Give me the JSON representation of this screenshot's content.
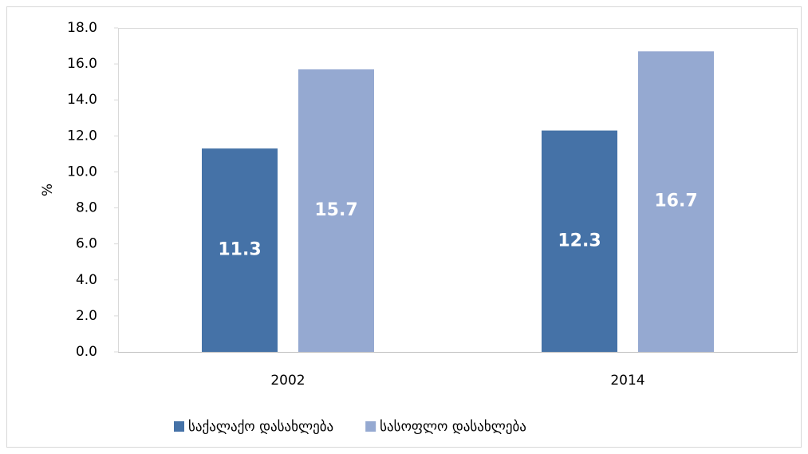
{
  "chart_data": {
    "type": "bar",
    "y_label": "%",
    "categories": [
      "2002",
      "2014"
    ],
    "series": [
      {
        "name": "საქალაქო დასახლება",
        "color": "#4572a7",
        "values": [
          11.3,
          12.3
        ]
      },
      {
        "name": "სასოფლო დასახლება",
        "color": "#95a9d1",
        "values": [
          15.7,
          16.7
        ]
      }
    ],
    "ylim": [
      0,
      18
    ],
    "yticks": [
      {
        "value": 0,
        "label": "0.0"
      },
      {
        "value": 2,
        "label": "2.0"
      },
      {
        "value": 4,
        "label": "4.0"
      },
      {
        "value": 6,
        "label": "6.0"
      },
      {
        "value": 8,
        "label": "8.0"
      },
      {
        "value": 10,
        "label": "10.0"
      },
      {
        "value": 12,
        "label": "12.0"
      },
      {
        "value": 14,
        "label": "14.0"
      },
      {
        "value": 16,
        "label": "16.0"
      },
      {
        "value": 18,
        "label": "18.0"
      }
    ],
    "legend": "bottom"
  }
}
